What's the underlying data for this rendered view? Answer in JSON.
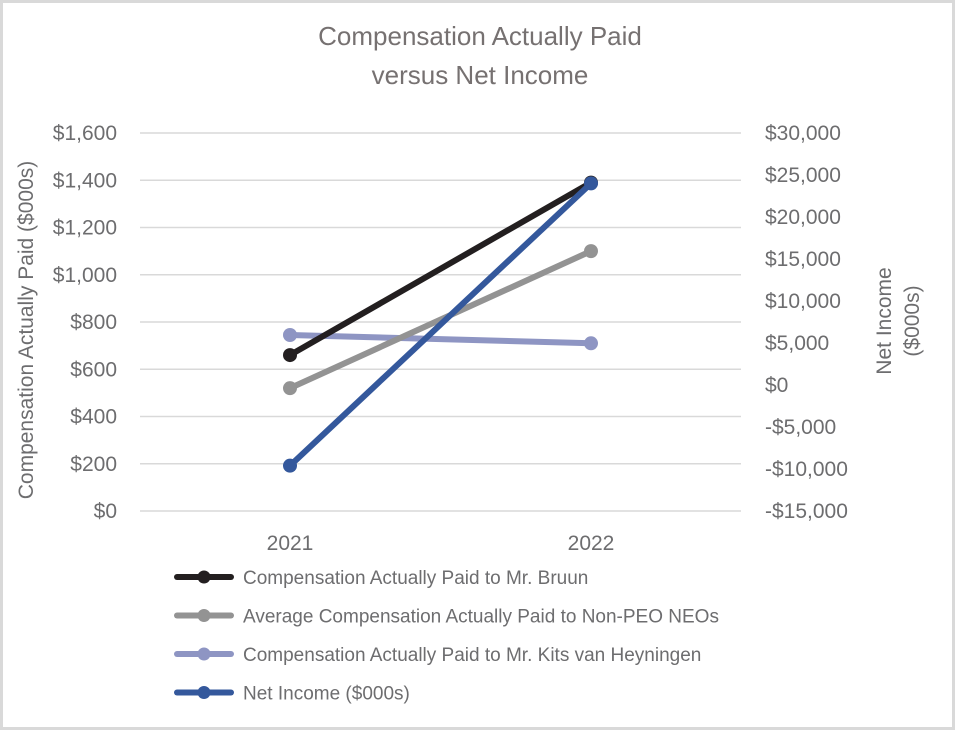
{
  "chart_data": {
    "type": "line",
    "title": "Compensation Actually Paid versus Net Income",
    "title_lines": [
      "Compensation Actually Paid",
      "versus Net Income"
    ],
    "categories": [
      "2021",
      "2022"
    ],
    "xlabel": "",
    "ylabel": "Compensation Actually Paid ($000s)",
    "ylabel_right": [
      "Net Income",
      "($000s)"
    ],
    "ylim": [
      0,
      1600
    ],
    "ylim_right": [
      -15000,
      30000
    ],
    "yticks": [
      "$0",
      "$200",
      "$400",
      "$600",
      "$800",
      "$1,000",
      "$1,200",
      "$1,400",
      "$1,600"
    ],
    "yticks_right": [
      "-$15,000",
      "-$10,000",
      "-$5,000",
      "$0",
      "$5,000",
      "$10,000",
      "$15,000",
      "$20,000",
      "$25,000",
      "$30,000"
    ],
    "grid": true,
    "legend_position": "bottom",
    "series": [
      {
        "name": "Compensation Actually Paid to Mr. Bruun",
        "axis": "left",
        "color": "#231f20",
        "values": [
          660,
          1390
        ]
      },
      {
        "name": "Average Compensation Actually Paid to Non-PEO NEOs",
        "axis": "left",
        "color": "#939393",
        "values": [
          520,
          1100
        ]
      },
      {
        "name": "Compensation Actually Paid to Mr. Kits van Heyningen",
        "axis": "left",
        "color": "#8e95c3",
        "values": [
          745,
          710
        ]
      },
      {
        "name": "Net Income ($000s)",
        "axis": "right",
        "color": "#34589c",
        "values": [
          -9600,
          24000
        ]
      }
    ]
  }
}
